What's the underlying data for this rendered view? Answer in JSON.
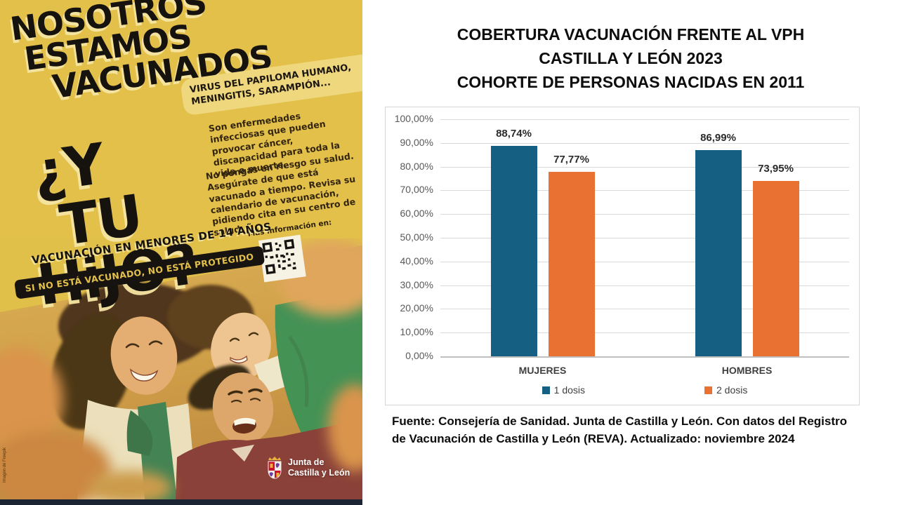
{
  "slide": {
    "title_lines": [
      "COBERTURA VACUNACIÓN FRENTE AL VPH",
      "CASTILLA Y LEÓN 2023",
      "COHORTE DE PERSONAS NACIDAS EN 2011"
    ],
    "source_lines": [
      "Fuente: Consejería de Sanidad. Junta de Castilla y León. Con datos del Registro",
      "de Vacunación de Castilla y León (REVA). Actualizado: noviembre 2024"
    ]
  },
  "poster": {
    "headline_lines": [
      "NOSOTROS",
      "ESTAMOS",
      "VACUNADOS"
    ],
    "question_lines": [
      "¿Y",
      "TU",
      "HiJO?"
    ],
    "diseases_pill": "VIRUS DEL PAPILOMA HUMANO, MENINGITIS, SARAMPIÓN...",
    "body_text_1": "Son enfermedades infecciosas que pueden provocar cáncer, discapacidad para toda la vida o muerte.",
    "body_text_2": "No pongas en riesgo su salud. Asegúrate de que está vacunado a tiempo. Revisa su calendario de vacunación, pidiendo cita en su centro de salud.",
    "more_info_label": "Más información en:",
    "age_banner": "VACUNACIÓN EN MENORES DE 14 AÑOS",
    "warning_banner": "SI NO ESTÁ VACUNADO, NO ESTÁ PROTEGIDO",
    "logo_lines": [
      "Junta de",
      "Castilla y León"
    ],
    "credit": "Imagen de Freepik"
  },
  "colors": {
    "poster_yellow": "#E2C04A",
    "pill_yellow": "#EFD77E",
    "navy_strip": "#1B2433",
    "dosis1_blue": "#156082",
    "dosis2_orange": "#E97132"
  },
  "chart_data": {
    "type": "bar",
    "title": "COBERTURA VACUNACIÓN FRENTE AL VPH CASTILLA Y LEÓN 2023 COHORTE DE PERSONAS NACIDAS EN 2011",
    "categories": [
      "MUJERES",
      "HOMBRES"
    ],
    "series": [
      {
        "name": "1 dosis",
        "color": "#156082",
        "values": [
          88.74,
          86.99
        ],
        "labels": [
          "88,74%",
          "86,99%"
        ]
      },
      {
        "name": "2 dosis",
        "color": "#E97132",
        "values": [
          77.77,
          73.95
        ],
        "labels": [
          "77,77%",
          "73,95%"
        ]
      }
    ],
    "y_ticks": [
      "100,00%",
      "90,00%",
      "80,00%",
      "70,00%",
      "60,00%",
      "50,00%",
      "40,00%",
      "30,00%",
      "20,00%",
      "10,00%",
      "0,00%"
    ],
    "ylim": [
      0,
      100
    ],
    "grid": true,
    "legend_position": "bottom",
    "xlabel": "",
    "ylabel": ""
  }
}
